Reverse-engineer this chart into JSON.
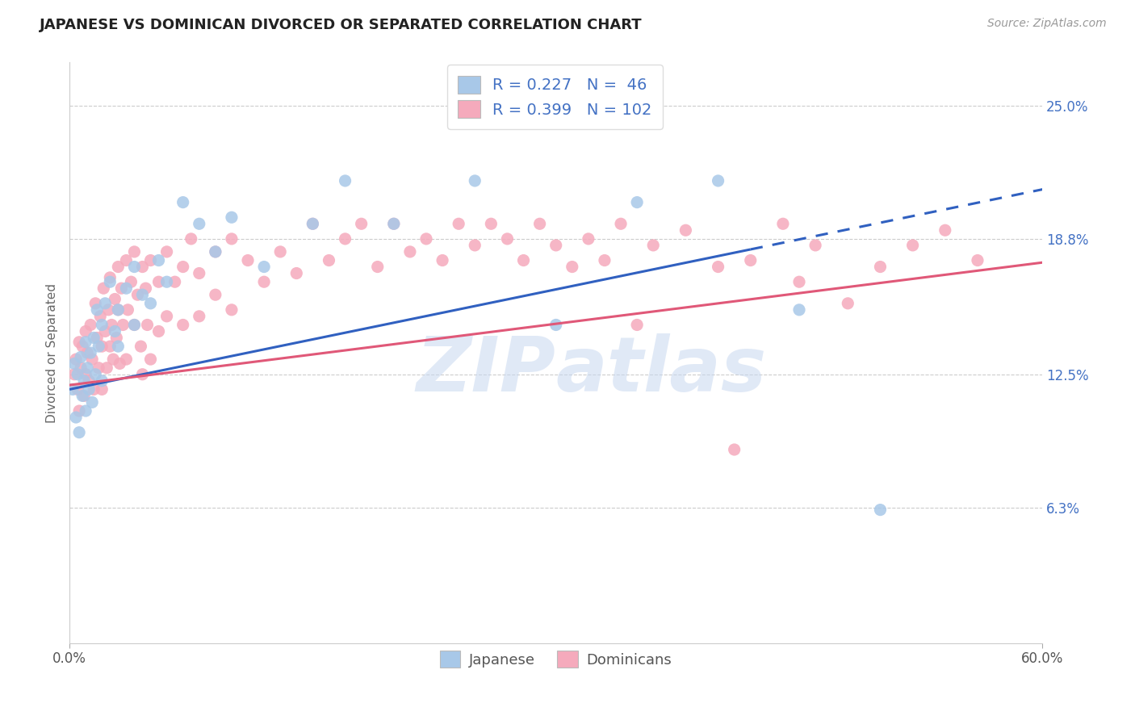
{
  "title": "JAPANESE VS DOMINICAN DIVORCED OR SEPARATED CORRELATION CHART",
  "source": "Source: ZipAtlas.com",
  "ylabel": "Divorced or Separated",
  "watermark": "ZIPAtlas",
  "legend_label1": "Japanese",
  "legend_label2": "Dominicans",
  "r1": 0.227,
  "n1": 46,
  "r2": 0.399,
  "n2": 102,
  "xmin": 0.0,
  "xmax": 0.6,
  "ymin": 0.0,
  "ymax": 0.27,
  "yticks": [
    0.063,
    0.125,
    0.188,
    0.25
  ],
  "ytick_labels": [
    "6.3%",
    "12.5%",
    "18.8%",
    "25.0%"
  ],
  "color_japanese": "#a8c8e8",
  "color_dominican": "#f5aabc",
  "color_text_blue": "#4472c4",
  "background_color": "#ffffff",
  "grid_color": "#cccccc",
  "trendline1_color": "#3060c0",
  "trendline2_color": "#e05878",
  "japanese_points": [
    [
      0.002,
      0.118
    ],
    [
      0.003,
      0.13
    ],
    [
      0.004,
      0.105
    ],
    [
      0.005,
      0.125
    ],
    [
      0.006,
      0.098
    ],
    [
      0.007,
      0.133
    ],
    [
      0.008,
      0.115
    ],
    [
      0.009,
      0.122
    ],
    [
      0.01,
      0.14
    ],
    [
      0.01,
      0.108
    ],
    [
      0.011,
      0.128
    ],
    [
      0.012,
      0.118
    ],
    [
      0.013,
      0.135
    ],
    [
      0.014,
      0.112
    ],
    [
      0.015,
      0.142
    ],
    [
      0.016,
      0.125
    ],
    [
      0.017,
      0.155
    ],
    [
      0.018,
      0.138
    ],
    [
      0.02,
      0.148
    ],
    [
      0.02,
      0.122
    ],
    [
      0.022,
      0.158
    ],
    [
      0.025,
      0.168
    ],
    [
      0.028,
      0.145
    ],
    [
      0.03,
      0.155
    ],
    [
      0.03,
      0.138
    ],
    [
      0.035,
      0.165
    ],
    [
      0.04,
      0.148
    ],
    [
      0.04,
      0.175
    ],
    [
      0.045,
      0.162
    ],
    [
      0.05,
      0.158
    ],
    [
      0.055,
      0.178
    ],
    [
      0.06,
      0.168
    ],
    [
      0.07,
      0.205
    ],
    [
      0.08,
      0.195
    ],
    [
      0.09,
      0.182
    ],
    [
      0.1,
      0.198
    ],
    [
      0.12,
      0.175
    ],
    [
      0.15,
      0.195
    ],
    [
      0.17,
      0.215
    ],
    [
      0.2,
      0.195
    ],
    [
      0.25,
      0.215
    ],
    [
      0.3,
      0.148
    ],
    [
      0.35,
      0.205
    ],
    [
      0.4,
      0.215
    ],
    [
      0.45,
      0.155
    ],
    [
      0.5,
      0.062
    ]
  ],
  "dominican_points": [
    [
      0.003,
      0.125
    ],
    [
      0.004,
      0.132
    ],
    [
      0.005,
      0.118
    ],
    [
      0.006,
      0.14
    ],
    [
      0.006,
      0.108
    ],
    [
      0.007,
      0.128
    ],
    [
      0.008,
      0.138
    ],
    [
      0.009,
      0.115
    ],
    [
      0.01,
      0.145
    ],
    [
      0.01,
      0.125
    ],
    [
      0.011,
      0.135
    ],
    [
      0.012,
      0.122
    ],
    [
      0.013,
      0.148
    ],
    [
      0.014,
      0.132
    ],
    [
      0.015,
      0.118
    ],
    [
      0.016,
      0.158
    ],
    [
      0.017,
      0.142
    ],
    [
      0.018,
      0.128
    ],
    [
      0.019,
      0.152
    ],
    [
      0.02,
      0.138
    ],
    [
      0.02,
      0.118
    ],
    [
      0.021,
      0.165
    ],
    [
      0.022,
      0.145
    ],
    [
      0.023,
      0.128
    ],
    [
      0.024,
      0.155
    ],
    [
      0.025,
      0.138
    ],
    [
      0.025,
      0.17
    ],
    [
      0.026,
      0.148
    ],
    [
      0.027,
      0.132
    ],
    [
      0.028,
      0.16
    ],
    [
      0.029,
      0.142
    ],
    [
      0.03,
      0.175
    ],
    [
      0.03,
      0.155
    ],
    [
      0.031,
      0.13
    ],
    [
      0.032,
      0.165
    ],
    [
      0.033,
      0.148
    ],
    [
      0.035,
      0.178
    ],
    [
      0.035,
      0.132
    ],
    [
      0.036,
      0.155
    ],
    [
      0.038,
      0.168
    ],
    [
      0.04,
      0.182
    ],
    [
      0.04,
      0.148
    ],
    [
      0.042,
      0.162
    ],
    [
      0.044,
      0.138
    ],
    [
      0.045,
      0.175
    ],
    [
      0.045,
      0.125
    ],
    [
      0.047,
      0.165
    ],
    [
      0.048,
      0.148
    ],
    [
      0.05,
      0.178
    ],
    [
      0.05,
      0.132
    ],
    [
      0.055,
      0.168
    ],
    [
      0.055,
      0.145
    ],
    [
      0.06,
      0.182
    ],
    [
      0.06,
      0.152
    ],
    [
      0.065,
      0.168
    ],
    [
      0.07,
      0.175
    ],
    [
      0.07,
      0.148
    ],
    [
      0.075,
      0.188
    ],
    [
      0.08,
      0.172
    ],
    [
      0.08,
      0.152
    ],
    [
      0.09,
      0.182
    ],
    [
      0.09,
      0.162
    ],
    [
      0.1,
      0.188
    ],
    [
      0.1,
      0.155
    ],
    [
      0.11,
      0.178
    ],
    [
      0.12,
      0.168
    ],
    [
      0.13,
      0.182
    ],
    [
      0.14,
      0.172
    ],
    [
      0.15,
      0.195
    ],
    [
      0.16,
      0.178
    ],
    [
      0.17,
      0.188
    ],
    [
      0.18,
      0.195
    ],
    [
      0.19,
      0.175
    ],
    [
      0.2,
      0.195
    ],
    [
      0.21,
      0.182
    ],
    [
      0.22,
      0.188
    ],
    [
      0.23,
      0.178
    ],
    [
      0.24,
      0.195
    ],
    [
      0.25,
      0.185
    ],
    [
      0.26,
      0.195
    ],
    [
      0.27,
      0.188
    ],
    [
      0.28,
      0.178
    ],
    [
      0.29,
      0.195
    ],
    [
      0.3,
      0.185
    ],
    [
      0.31,
      0.175
    ],
    [
      0.32,
      0.188
    ],
    [
      0.33,
      0.178
    ],
    [
      0.34,
      0.195
    ],
    [
      0.35,
      0.148
    ],
    [
      0.36,
      0.185
    ],
    [
      0.38,
      0.192
    ],
    [
      0.4,
      0.175
    ],
    [
      0.41,
      0.09
    ],
    [
      0.42,
      0.178
    ],
    [
      0.44,
      0.195
    ],
    [
      0.45,
      0.168
    ],
    [
      0.46,
      0.185
    ],
    [
      0.48,
      0.158
    ],
    [
      0.5,
      0.175
    ],
    [
      0.52,
      0.185
    ],
    [
      0.54,
      0.192
    ],
    [
      0.56,
      0.178
    ]
  ],
  "jap_trendline_solid_end": 0.42,
  "jap_trendline_dashed_start": 0.42,
  "jap_trendline_y0": 0.118,
  "jap_trendline_slope": 0.155,
  "dom_trendline_y0": 0.12,
  "dom_trendline_slope": 0.095
}
